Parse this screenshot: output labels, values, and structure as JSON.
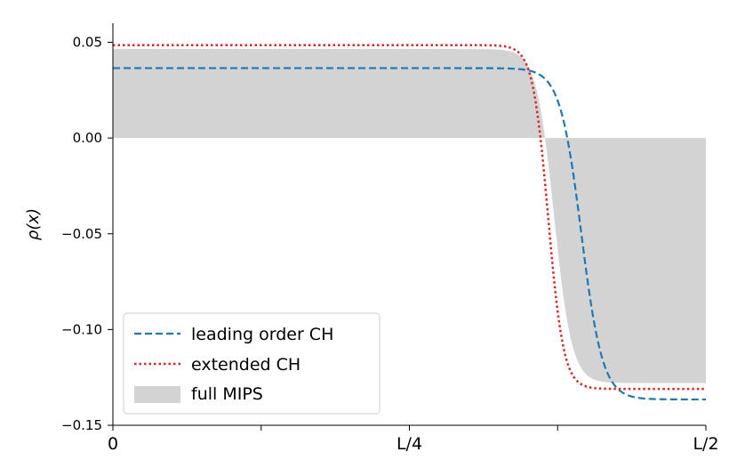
{
  "chart_data": {
    "type": "line",
    "title": "",
    "xlabel": "",
    "ylabel": "ρ(x)",
    "x_ticks": [
      "0",
      "L/4",
      "L/2"
    ],
    "x_minor_ticks": 2,
    "y_ticks": [
      "0.05",
      "0.00",
      "−0.05",
      "−0.10",
      "−0.15"
    ],
    "y_tick_values": [
      0.05,
      0.0,
      -0.05,
      -0.1,
      -0.15
    ],
    "xlim": [
      0,
      0.5
    ],
    "ylim": [
      -0.15,
      0.06
    ],
    "grid": false,
    "legend_position": "lower-left",
    "series": [
      {
        "name": "leading order CH",
        "style": "dashed",
        "color": "#1f77b4",
        "y_left": 0.0365,
        "y_right": -0.1365,
        "x_center": 0.395,
        "width": 0.009
      },
      {
        "name": "extended CH",
        "style": "dotted",
        "color": "#d62728",
        "y_left": 0.0485,
        "y_right": -0.131,
        "x_center": 0.367,
        "width": 0.0065
      },
      {
        "name": "full MIPS",
        "style": "fill",
        "color": "#d3d3d3",
        "y_left": 0.0465,
        "y_right": -0.128,
        "x_center": 0.372,
        "width": 0.0075
      }
    ]
  }
}
